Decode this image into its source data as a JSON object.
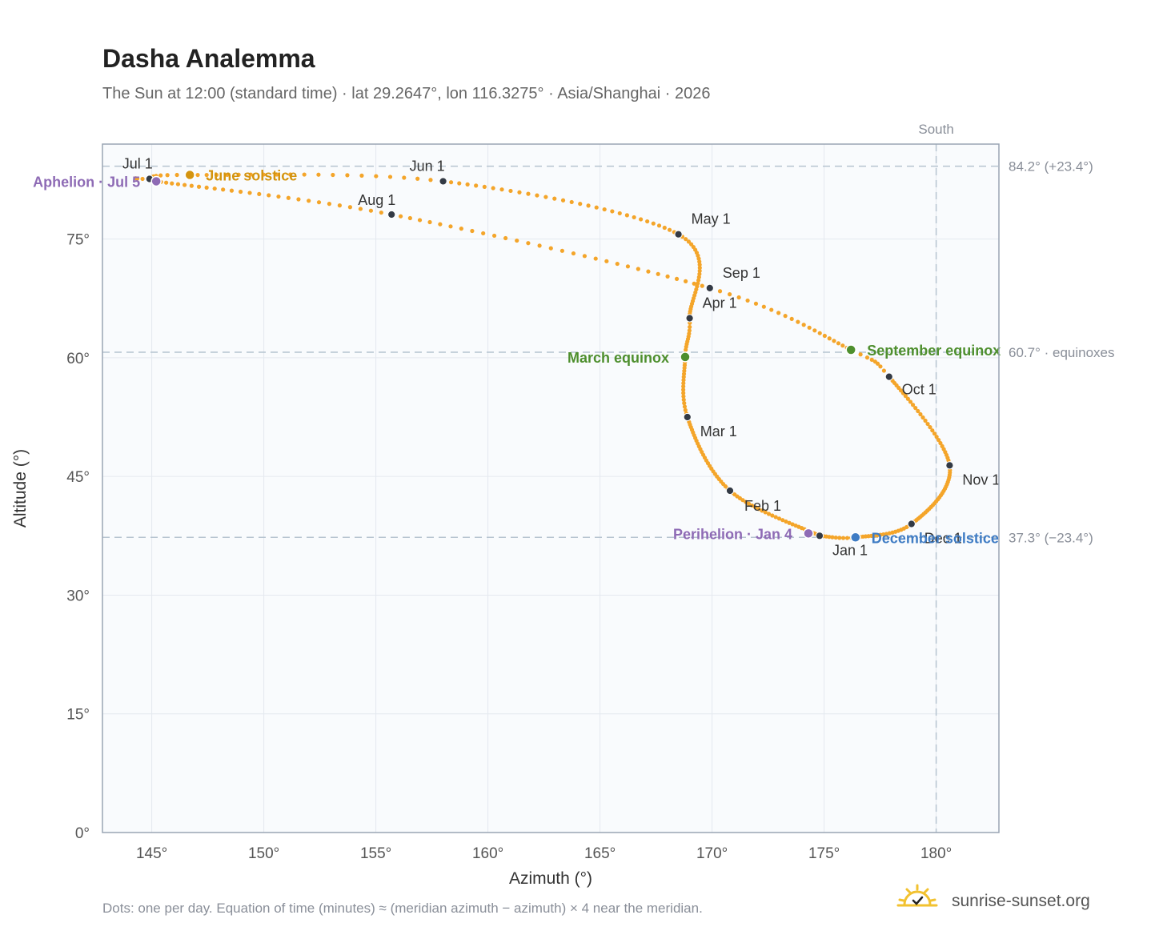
{
  "header": {
    "title": "Dasha Analemma",
    "subtitle": "The Sun at 12:00 (standard time) · lat 29.2647°, lon 116.3275° · Asia/Shanghai · 2026"
  },
  "footer": {
    "note": "Dots: one per day. Equation of time (minutes) ≈ (meridian azimuth − azimuth) × 4 near the meridian.",
    "brand": "sunrise-sunset.org"
  },
  "colors": {
    "curve": "#f4a52a",
    "month_dot": "#333a45",
    "june_solstice": "#d4940f",
    "december_solstice": "#3f7cc4",
    "equinox": "#4e8f2e",
    "apsis": "#8e6bb5",
    "reference_line": "#b6c4d0",
    "plot_background": "#f9fbfd",
    "grid": "#e4e9ef",
    "frame": "#9aa5b4"
  },
  "chart_data": {
    "type": "scatter",
    "title": "Dasha Analemma",
    "subtitle": "The Sun at 12:00 (standard time) · lat 29.2647°, lon 116.3275° · Asia/Shanghai · 2026",
    "xlabel": "Azimuth (°)",
    "ylabel": "Altitude (°)",
    "xlim": [
      142.8,
      182.8
    ],
    "ylim": [
      0,
      87
    ],
    "x_ticks": [
      145,
      150,
      155,
      160,
      165,
      170,
      175,
      180
    ],
    "x_tick_labels": [
      "145°",
      "150°",
      "155°",
      "160°",
      "165°",
      "170°",
      "175°",
      "180°"
    ],
    "y_ticks": [
      0,
      15,
      30,
      45,
      60,
      75
    ],
    "y_tick_labels": [
      "0°",
      "15°",
      "30°",
      "45°",
      "60°",
      "75°"
    ],
    "grid": true,
    "meridian": {
      "azimuth": 180,
      "label": "South"
    },
    "reference_lines": [
      {
        "altitude": 84.2,
        "label": "84.2° (+23.4°)"
      },
      {
        "altitude": 60.7,
        "label": "60.7° · equinoxes"
      },
      {
        "altitude": 37.3,
        "label": "37.3° (−23.4°)"
      }
    ],
    "path_keypoints": [
      {
        "doy": 1,
        "az": 174.8,
        "alt": 37.5
      },
      {
        "doy": 32,
        "az": 170.8,
        "alt": 43.2
      },
      {
        "doy": 60,
        "az": 168.9,
        "alt": 52.5
      },
      {
        "doy": 79,
        "az": 168.8,
        "alt": 60.1
      },
      {
        "doy": 91,
        "az": 169.0,
        "alt": 65.0
      },
      {
        "doy": 121,
        "az": 168.5,
        "alt": 75.6
      },
      {
        "doy": 152,
        "az": 158.0,
        "alt": 82.3
      },
      {
        "doy": 172,
        "az": 146.7,
        "alt": 83.1
      },
      {
        "doy": 182,
        "az": 144.9,
        "alt": 82.6
      },
      {
        "doy": 186,
        "az": 145.2,
        "alt": 82.3
      },
      {
        "doy": 213,
        "az": 155.7,
        "alt": 78.1
      },
      {
        "doy": 244,
        "az": 169.9,
        "alt": 68.8
      },
      {
        "doy": 266,
        "az": 176.2,
        "alt": 61.0
      },
      {
        "doy": 274,
        "az": 177.9,
        "alt": 57.6
      },
      {
        "doy": 305,
        "az": 180.6,
        "alt": 46.4
      },
      {
        "doy": 335,
        "az": 178.9,
        "alt": 39.0
      },
      {
        "doy": 355,
        "az": 176.4,
        "alt": 37.3
      },
      {
        "doy": 366,
        "az": 174.8,
        "alt": 37.5
      }
    ],
    "month_markers": [
      {
        "label": "Jan 1",
        "az": 174.8,
        "alt": 37.5,
        "dx": 16,
        "dy": 24
      },
      {
        "label": "Feb 1",
        "az": 170.8,
        "alt": 43.2,
        "dx": 18,
        "dy": 25
      },
      {
        "label": "Mar 1",
        "az": 168.9,
        "alt": 52.5,
        "dx": 16,
        "dy": 24
      },
      {
        "label": "Apr 1",
        "az": 169.0,
        "alt": 65.0,
        "dx": 16,
        "dy": -13
      },
      {
        "label": "May 1",
        "az": 168.5,
        "alt": 75.6,
        "dx": 16,
        "dy": -13
      },
      {
        "label": "Jun 1",
        "az": 158.0,
        "alt": 82.3,
        "dx": -42,
        "dy": -13
      },
      {
        "label": "Jul 1",
        "az": 144.9,
        "alt": 82.6,
        "dx": -34,
        "dy": -13
      },
      {
        "label": "Aug 1",
        "az": 155.7,
        "alt": 78.1,
        "dx": -42,
        "dy": -12
      },
      {
        "label": "Sep 1",
        "az": 169.9,
        "alt": 68.8,
        "dx": 16,
        "dy": -13
      },
      {
        "label": "Oct 1",
        "az": 177.9,
        "alt": 57.6,
        "dx": 16,
        "dy": 22
      },
      {
        "label": "Nov 1",
        "az": 180.6,
        "alt": 46.4,
        "dx": 16,
        "dy": 24
      },
      {
        "label": "Dec 1",
        "az": 178.9,
        "alt": 39.0,
        "dx": 16,
        "dy": 24
      }
    ],
    "events": [
      {
        "label": "June solstice",
        "az": 146.7,
        "alt": 83.1,
        "color": "#d4940f",
        "side": "right"
      },
      {
        "label": "Aphelion · Jul 5",
        "az": 145.2,
        "alt": 82.3,
        "color": "#8e6bb5",
        "side": "left"
      },
      {
        "label": "March equinox",
        "az": 168.8,
        "alt": 60.1,
        "color": "#4e8f2e",
        "side": "left"
      },
      {
        "label": "September equinox",
        "az": 176.2,
        "alt": 61.0,
        "color": "#4e8f2e",
        "side": "right"
      },
      {
        "label": "Perihelion · Jan 4",
        "az": 174.3,
        "alt": 37.8,
        "color": "#8e6bb5",
        "side": "left"
      },
      {
        "label": "December solstice",
        "az": 176.4,
        "alt": 37.3,
        "color": "#3f7cc4",
        "side": "right"
      }
    ]
  }
}
